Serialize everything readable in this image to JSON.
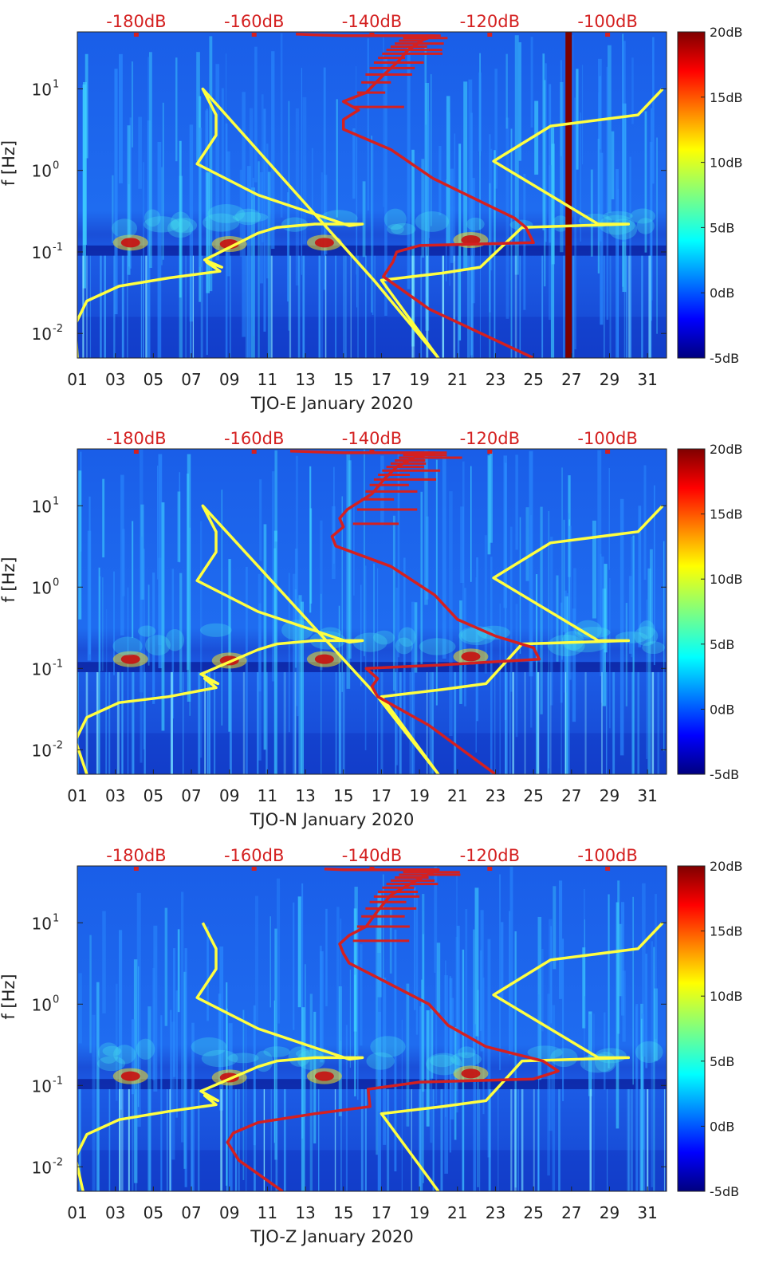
{
  "chart_data": [
    {
      "type": "heatmap",
      "title": "",
      "xlabel": "TJO-E January 2020",
      "ylabel": "f [Hz]",
      "x_ticks": [
        "01",
        "03",
        "05",
        "07",
        "09",
        "11",
        "13",
        "15",
        "17",
        "19",
        "21",
        "23",
        "25",
        "27",
        "29",
        "31"
      ],
      "xlim": [
        1,
        32
      ],
      "y_scale": "log",
      "ylim": [
        0.005,
        50
      ],
      "y_ticks": [
        {
          "label_base": "10",
          "label_exp": "-2",
          "value": 0.01
        },
        {
          "label_base": "10",
          "label_exp": "-1",
          "value": 0.1
        },
        {
          "label_base": "10",
          "label_exp": "0",
          "value": 1
        },
        {
          "label_base": "10",
          "label_exp": "1",
          "value": 10
        }
      ],
      "top_ticks": [
        "-180dB",
        "-160dB",
        "-140dB",
        "-120dB",
        "-100dB"
      ],
      "top_axis_range": [
        -190,
        -90
      ],
      "colorbar": {
        "ticks": [
          "20dB",
          "15dB",
          "10dB",
          "5dB",
          "0dB",
          "-5dB"
        ],
        "range": [
          -5,
          20
        ]
      },
      "series": [
        {
          "color": "#ffff40",
          "points": [
            [
              1,
              0.005
            ],
            [
              0.9,
              0.013
            ],
            [
              1.5,
              0.025
            ],
            [
              3.2,
              0.038
            ],
            [
              5.8,
              0.048
            ],
            [
              8.5,
              0.058
            ],
            [
              7.8,
              0.075
            ],
            [
              8.6,
              0.065
            ],
            [
              7.7,
              0.08
            ],
            [
              10.5,
              0.17
            ],
            [
              11.5,
              0.2
            ],
            [
              13.5,
              0.22
            ],
            [
              16,
              0.22
            ],
            [
              15.3,
              0.21
            ],
            [
              10.5,
              0.5
            ],
            [
              7.3,
              1.2
            ],
            [
              8.3,
              2.7
            ],
            [
              8.3,
              4.8
            ],
            [
              7.6,
              10
            ],
            [
              16.6,
              0.045
            ],
            [
              20,
              0.005
            ],
            [
              17,
              0.045
            ],
            [
              20.2,
              0.055
            ],
            [
              22.2,
              0.065
            ],
            [
              24.4,
              0.2
            ],
            [
              30,
              0.22
            ],
            [
              28.4,
              0.22
            ],
            [
              22.9,
              1.3
            ],
            [
              25.9,
              3.5
            ],
            [
              30.5,
              4.8
            ],
            [
              31.8,
              10
            ]
          ]
        },
        {
          "color": "#d42020",
          "points": [
            [
              25,
              0.005
            ],
            [
              19.5,
              0.02
            ],
            [
              17.1,
              0.05
            ],
            [
              17.6,
              0.075
            ],
            [
              17.8,
              0.1
            ],
            [
              19,
              0.12
            ],
            [
              25,
              0.13
            ],
            [
              24.6,
              0.2
            ],
            [
              24,
              0.26
            ],
            [
              19.7,
              0.8
            ],
            [
              17.5,
              1.8
            ],
            [
              15,
              3.2
            ],
            [
              15,
              4.2
            ],
            [
              15.8,
              5.5
            ],
            [
              15,
              7
            ],
            [
              16.2,
              9
            ],
            [
              17,
              14
            ],
            [
              17.9,
              22
            ],
            [
              18.4,
              30
            ],
            [
              19.2,
              40
            ],
            [
              19.8,
              45
            ],
            [
              16.5,
              45
            ],
            [
              15,
              45
            ],
            [
              13.5,
              46
            ],
            [
              12.5,
              47
            ]
          ]
        }
      ]
    },
    {
      "type": "heatmap",
      "title": "",
      "xlabel": "TJO-N January 2020",
      "ylabel": "f [Hz]",
      "x_ticks": [
        "01",
        "03",
        "05",
        "07",
        "09",
        "11",
        "13",
        "15",
        "17",
        "19",
        "21",
        "23",
        "25",
        "27",
        "29",
        "31"
      ],
      "xlim": [
        1,
        32
      ],
      "y_scale": "log",
      "ylim": [
        0.005,
        50
      ],
      "y_ticks": [
        {
          "label_base": "10",
          "label_exp": "-2",
          "value": 0.01
        },
        {
          "label_base": "10",
          "label_exp": "-1",
          "value": 0.1
        },
        {
          "label_base": "10",
          "label_exp": "0",
          "value": 1
        },
        {
          "label_base": "10",
          "label_exp": "1",
          "value": 10
        }
      ],
      "top_ticks": [
        "-180dB",
        "-160dB",
        "-140dB",
        "-120dB",
        "-100dB"
      ],
      "top_axis_range": [
        -190,
        -90
      ],
      "colorbar": {
        "ticks": [
          "20dB",
          "15dB",
          "10dB",
          "5dB",
          "0dB",
          "-5dB"
        ],
        "range": [
          -5,
          20
        ]
      },
      "series": [
        {
          "color": "#ffff40",
          "points": [
            [
              1.5,
              0.005
            ],
            [
              0.9,
              0.013
            ],
            [
              1.5,
              0.025
            ],
            [
              3.2,
              0.038
            ],
            [
              5.8,
              0.045
            ],
            [
              8.3,
              0.058
            ],
            [
              7.7,
              0.075
            ],
            [
              8.4,
              0.065
            ],
            [
              7.5,
              0.085
            ],
            [
              10.5,
              0.17
            ],
            [
              11.5,
              0.2
            ],
            [
              13.5,
              0.22
            ],
            [
              16,
              0.22
            ],
            [
              15.3,
              0.21
            ],
            [
              10.5,
              0.5
            ],
            [
              7.3,
              1.2
            ],
            [
              8.3,
              2.7
            ],
            [
              8.3,
              4.8
            ],
            [
              7.6,
              10
            ],
            [
              16.8,
              0.045
            ],
            [
              20,
              0.005
            ],
            [
              17,
              0.045
            ],
            [
              20.2,
              0.055
            ],
            [
              22.5,
              0.065
            ],
            [
              24.4,
              0.2
            ],
            [
              30,
              0.22
            ],
            [
              28.4,
              0.22
            ],
            [
              22.9,
              1.3
            ],
            [
              25.9,
              3.5
            ],
            [
              30.5,
              4.8
            ],
            [
              31.8,
              10
            ]
          ]
        },
        {
          "color": "#d42020",
          "points": [
            [
              23,
              0.005
            ],
            [
              19.5,
              0.02
            ],
            [
              16.8,
              0.045
            ],
            [
              16.5,
              0.06
            ],
            [
              16.8,
              0.075
            ],
            [
              16.2,
              0.1
            ],
            [
              20,
              0.11
            ],
            [
              25.3,
              0.13
            ],
            [
              25,
              0.18
            ],
            [
              23,
              0.25
            ],
            [
              21,
              0.4
            ],
            [
              19.8,
              0.8
            ],
            [
              17.5,
              1.8
            ],
            [
              14.6,
              3.2
            ],
            [
              14.4,
              4.2
            ],
            [
              15,
              5.5
            ],
            [
              14.8,
              7
            ],
            [
              15.2,
              9
            ],
            [
              16.5,
              14
            ],
            [
              17.2,
              22
            ],
            [
              17.8,
              30
            ],
            [
              18.8,
              40
            ],
            [
              19.8,
              45
            ],
            [
              16.5,
              45
            ],
            [
              15,
              45
            ],
            [
              13.5,
              46
            ],
            [
              12.2,
              47
            ]
          ]
        }
      ]
    },
    {
      "type": "heatmap",
      "title": "",
      "xlabel": "TJO-Z January 2020",
      "ylabel": "f [Hz]",
      "x_ticks": [
        "01",
        "03",
        "05",
        "07",
        "09",
        "11",
        "13",
        "15",
        "17",
        "19",
        "21",
        "23",
        "25",
        "27",
        "29",
        "31"
      ],
      "xlim": [
        1,
        32
      ],
      "y_scale": "log",
      "ylim": [
        0.005,
        50
      ],
      "y_ticks": [
        {
          "label_base": "10",
          "label_exp": "-2",
          "value": 0.01
        },
        {
          "label_base": "10",
          "label_exp": "-1",
          "value": 0.1
        },
        {
          "label_base": "10",
          "label_exp": "0",
          "value": 1
        },
        {
          "label_base": "10",
          "label_exp": "1",
          "value": 10
        }
      ],
      "top_ticks": [
        "-180dB",
        "-160dB",
        "-140dB",
        "-120dB",
        "-100dB"
      ],
      "top_axis_range": [
        -190,
        -90
      ],
      "colorbar": {
        "ticks": [
          "20dB",
          "15dB",
          "10dB",
          "5dB",
          "0dB",
          "-5dB"
        ],
        "range": [
          -5,
          20
        ]
      },
      "series": [
        {
          "color": "#ffff40",
          "points": [
            [
              20,
              0.005
            ],
            [
              17,
              0.045
            ],
            [
              20.2,
              0.055
            ],
            [
              22.5,
              0.065
            ],
            [
              24.4,
              0.2
            ],
            [
              30,
              0.22
            ],
            [
              28.4,
              0.22
            ],
            [
              22.9,
              1.3
            ],
            [
              25.9,
              3.5
            ],
            [
              30.5,
              4.8
            ],
            [
              31.8,
              10
            ]
          ]
        },
        {
          "color": "#ffff40",
          "points": [
            [
              1.3,
              0.005
            ],
            [
              0.9,
              0.013
            ],
            [
              1.5,
              0.025
            ],
            [
              3.2,
              0.038
            ],
            [
              5.8,
              0.048
            ],
            [
              8.3,
              0.058
            ],
            [
              7.7,
              0.075
            ],
            [
              8.4,
              0.065
            ],
            [
              7.5,
              0.085
            ],
            [
              10.5,
              0.17
            ],
            [
              11.5,
              0.2
            ],
            [
              13.5,
              0.22
            ],
            [
              16,
              0.22
            ],
            [
              15.3,
              0.21
            ],
            [
              10.5,
              0.5
            ],
            [
              7.3,
              1.2
            ],
            [
              8.3,
              2.7
            ],
            [
              8.3,
              4.8
            ],
            [
              7.6,
              10
            ]
          ]
        },
        {
          "color": "#d42020",
          "points": [
            [
              11.8,
              0.005
            ],
            [
              9.5,
              0.012
            ],
            [
              8.9,
              0.02
            ],
            [
              9.2,
              0.026
            ],
            [
              10.5,
              0.035
            ],
            [
              13.5,
              0.045
            ],
            [
              16.4,
              0.055
            ],
            [
              16.3,
              0.09
            ],
            [
              19,
              0.11
            ],
            [
              25,
              0.12
            ],
            [
              26.3,
              0.15
            ],
            [
              25.5,
              0.2
            ],
            [
              22.5,
              0.3
            ],
            [
              20.5,
              0.55
            ],
            [
              19.5,
              1
            ],
            [
              17,
              2
            ],
            [
              15.3,
              3.2
            ],
            [
              15,
              4.2
            ],
            [
              14.8,
              5.5
            ],
            [
              15.3,
              7
            ],
            [
              16.2,
              9
            ],
            [
              16.8,
              14
            ],
            [
              17.5,
              22
            ],
            [
              18.5,
              30
            ],
            [
              19.5,
              40
            ],
            [
              20,
              45
            ],
            [
              16.5,
              45
            ],
            [
              15,
              45
            ],
            [
              14,
              46
            ]
          ]
        }
      ]
    }
  ]
}
